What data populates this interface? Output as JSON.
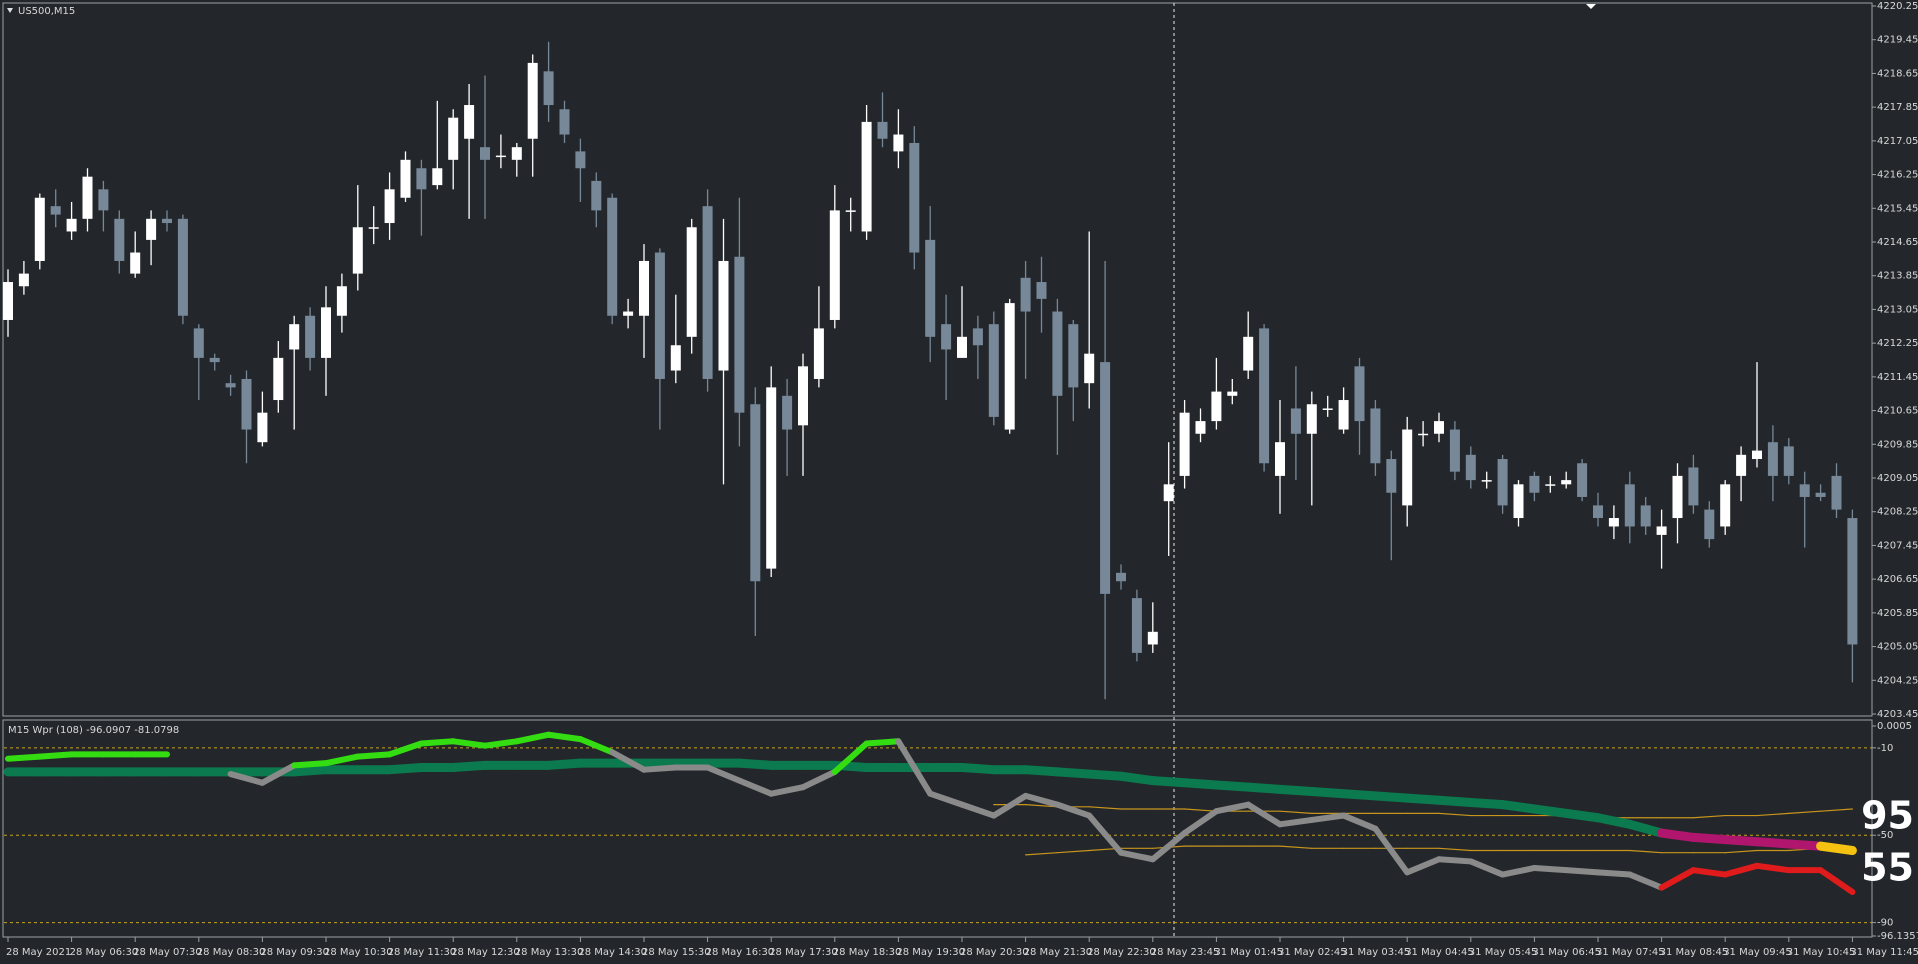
{
  "chart_data": [
    {
      "type": "candlestick",
      "title": "US500,M15",
      "up_color": "#ffffff",
      "down_color": "#778899",
      "ylim": [
        4203.45,
        4220.25
      ],
      "yticks": [
        4220.25,
        4219.45,
        4218.65,
        4217.85,
        4217.05,
        4216.25,
        4215.45,
        4214.65,
        4213.85,
        4213.05,
        4212.25,
        4211.45,
        4210.65,
        4209.85,
        4209.05,
        4208.25,
        4207.45,
        4206.65,
        4205.85,
        4205.05,
        4204.25,
        4203.45
      ],
      "open": [
        4212.8,
        4213.6,
        4214.2,
        4215.5,
        4214.9,
        4215.2,
        4215.9,
        4215.2,
        4213.9,
        4214.7,
        4215.2,
        4215.2,
        4212.6,
        4211.9,
        4211.3,
        4211.4,
        4209.9,
        4210.9,
        4212.1,
        4212.9,
        4211.9,
        4212.9,
        4213.9,
        4215.0,
        4215.1,
        4215.7,
        4216.4,
        4216.0,
        4216.6,
        4217.1,
        4216.9,
        4216.7,
        4216.6,
        4217.1,
        4218.7,
        4217.8,
        4216.8,
        4216.1,
        4215.7,
        4212.9,
        4212.9,
        4214.4,
        4211.6,
        4212.4,
        4215.5,
        4211.6,
        4214.3,
        4210.8,
        4206.9,
        4211.0,
        4210.3,
        4211.4,
        4212.8,
        4215.4,
        4214.9,
        4217.5,
        4216.8,
        4217.0,
        4214.7,
        4212.7,
        4211.9,
        4212.6,
        4212.7,
        4210.2,
        4213.8,
        4213.7,
        4213.0,
        4212.7,
        4211.3,
        4211.8,
        4206.8,
        4206.2,
        4205.1,
        4208.5,
        4209.1,
        4210.1,
        4210.4,
        4211.0,
        4211.6,
        4212.6,
        4209.1,
        4210.7,
        4210.1,
        4210.7,
        4210.2,
        4211.7,
        4210.7,
        4209.5,
        4208.4,
        4210.1,
        4210.1,
        4210.2,
        4209.6,
        4209.0,
        4209.5,
        4208.1,
        4209.1,
        4208.9,
        4208.9,
        4209.4,
        4208.4,
        4207.9,
        4208.9,
        4208.4,
        4207.7,
        4208.1,
        4209.3,
        4208.3,
        4207.9,
        4209.1,
        4209.5,
        4209.9,
        4209.8,
        4208.9,
        4208.7,
        4209.1,
        4208.1
      ],
      "high": [
        4214.0,
        4214.2,
        4215.8,
        4215.9,
        4215.6,
        4216.4,
        4216.1,
        4215.4,
        4214.9,
        4215.4,
        4215.4,
        4215.3,
        4212.7,
        4212.0,
        4211.5,
        4211.6,
        4211.1,
        4212.3,
        4212.9,
        4213.1,
        4213.6,
        4213.9,
        4216.0,
        4215.5,
        4216.3,
        4216.8,
        4216.6,
        4218.0,
        4217.8,
        4218.4,
        4218.6,
        4217.2,
        4217.0,
        4219.1,
        4219.4,
        4218.0,
        4217.1,
        4216.3,
        4215.8,
        4213.3,
        4214.6,
        4214.5,
        4213.4,
        4215.2,
        4215.9,
        4215.2,
        4215.7,
        4211.2,
        4211.7,
        4211.4,
        4212.0,
        4213.6,
        4216.0,
        4215.7,
        4217.9,
        4218.2,
        4217.8,
        4217.4,
        4215.5,
        4213.4,
        4213.6,
        4212.9,
        4213.0,
        4213.3,
        4214.2,
        4214.3,
        4213.3,
        4212.8,
        4214.9,
        4214.2,
        4207.0,
        4206.4,
        4206.1,
        4209.9,
        4210.9,
        4210.7,
        4211.9,
        4211.4,
        4213.0,
        4212.7,
        4210.9,
        4211.7,
        4211.1,
        4211.0,
        4211.2,
        4211.9,
        4210.9,
        4209.7,
        4210.5,
        4210.4,
        4210.6,
        4210.4,
        4209.8,
        4209.2,
        4209.6,
        4209.0,
        4209.2,
        4209.1,
        4209.2,
        4209.5,
        4208.7,
        4208.4,
        4209.2,
        4208.6,
        4208.3,
        4209.4,
        4209.6,
        4208.5,
        4209.0,
        4209.8,
        4211.8,
        4210.3,
        4210.0,
        4209.2,
        4208.9,
        4209.4,
        4208.3
      ],
      "low": [
        4212.4,
        4213.4,
        4214.0,
        4215.0,
        4214.7,
        4214.9,
        4214.9,
        4213.9,
        4213.8,
        4214.1,
        4214.9,
        4212.7,
        4210.9,
        4211.6,
        4211.0,
        4209.4,
        4209.8,
        4210.6,
        4210.2,
        4211.6,
        4211.0,
        4212.5,
        4213.5,
        4214.6,
        4214.7,
        4215.6,
        4214.8,
        4215.9,
        4215.9,
        4215.2,
        4215.2,
        4216.4,
        4216.2,
        4216.2,
        4217.5,
        4217.0,
        4215.6,
        4215.0,
        4212.7,
        4212.6,
        4211.9,
        4210.2,
        4211.3,
        4212.0,
        4211.1,
        4208.9,
        4209.8,
        4205.3,
        4206.7,
        4209.1,
        4209.1,
        4211.2,
        4212.6,
        4214.9,
        4214.7,
        4216.9,
        4216.4,
        4214.0,
        4211.8,
        4210.9,
        4211.9,
        4211.4,
        4210.3,
        4210.1,
        4211.4,
        4212.5,
        4209.6,
        4210.4,
        4210.7,
        4203.8,
        4206.4,
        4204.7,
        4204.9,
        4207.2,
        4208.8,
        4209.9,
        4210.2,
        4210.8,
        4211.4,
        4209.2,
        4208.2,
        4209.0,
        4208.4,
        4210.5,
        4210.1,
        4209.6,
        4209.1,
        4207.1,
        4207.9,
        4209.8,
        4209.9,
        4209.0,
        4208.8,
        4208.8,
        4208.2,
        4207.9,
        4208.5,
        4208.7,
        4208.8,
        4208.5,
        4207.9,
        4207.6,
        4207.5,
        4207.7,
        4206.9,
        4207.5,
        4208.2,
        4207.4,
        4207.7,
        4208.5,
        4209.3,
        4208.5,
        4208.9,
        4207.4,
        4208.5,
        4208.1,
        4204.2
      ],
      "close": [
        4213.7,
        4213.9,
        4215.7,
        4215.3,
        4215.2,
        4216.2,
        4215.4,
        4214.2,
        4214.4,
        4215.2,
        4215.1,
        4212.9,
        4211.9,
        4211.8,
        4211.2,
        4210.2,
        4210.6,
        4211.9,
        4212.7,
        4211.9,
        4213.1,
        4213.6,
        4215.0,
        4215.0,
        4215.9,
        4216.6,
        4215.9,
        4216.4,
        4217.6,
        4217.9,
        4216.6,
        4216.7,
        4216.9,
        4218.9,
        4217.9,
        4217.2,
        4216.4,
        4215.4,
        4212.9,
        4213.0,
        4214.2,
        4211.4,
        4212.2,
        4215.0,
        4211.4,
        4214.2,
        4210.6,
        4206.6,
        4211.2,
        4210.2,
        4211.7,
        4212.6,
        4215.4,
        4215.4,
        4217.5,
        4217.1,
        4217.2,
        4214.4,
        4212.4,
        4212.1,
        4212.4,
        4212.2,
        4210.5,
        4213.2,
        4213.0,
        4213.3,
        4211.0,
        4211.2,
        4212.0,
        4206.3,
        4206.6,
        4204.9,
        4205.4,
        4208.9,
        4210.6,
        4210.4,
        4211.1,
        4211.1,
        4212.4,
        4209.4,
        4209.9,
        4210.1,
        4210.8,
        4210.7,
        4210.9,
        4210.4,
        4209.4,
        4208.7,
        4210.2,
        4210.1,
        4210.4,
        4209.2,
        4209.0,
        4209.0,
        4208.4,
        4208.9,
        4208.7,
        4208.9,
        4209.0,
        4208.6,
        4208.1,
        4208.1,
        4207.9,
        4207.9,
        4207.9,
        4209.1,
        4208.4,
        4207.6,
        4208.9,
        4209.6,
        4209.7,
        4209.1,
        4209.1,
        4208.6,
        4208.6,
        4208.3,
        4205.1
      ]
    },
    {
      "type": "line",
      "title": "M15 Wpr (108) -96.0907 -81.0798",
      "ylim": [
        -96.1357,
        0.0005
      ],
      "yticks": [
        0.0005,
        -10,
        -50,
        -90,
        -96.1357
      ],
      "level_color": "#c8a21a",
      "categories": [
        "28 May 2021",
        null,
        "28 May 06:30",
        null,
        "28 May 07:30",
        null,
        "28 May 08:30",
        null,
        "28 May 09:30",
        null,
        "28 May 10:30",
        null,
        "28 May 11:30",
        null,
        "28 May 12:30",
        null,
        "28 May 13:30",
        null,
        "28 May 14:30",
        null,
        "28 May 15:30",
        null,
        "28 May 16:30",
        null,
        "28 May 17:30",
        null,
        "28 May 18:30",
        null,
        "28 May 19:30",
        null,
        "28 May 20:30",
        null,
        "28 May 21:30",
        null,
        "28 May 22:30",
        null,
        "28 May 23:45",
        null,
        "31 May 01:45",
        null,
        "31 May 02:45",
        null,
        "31 May 03:45",
        null,
        "31 May 04:45",
        null,
        "31 May 05:45",
        null,
        "31 May 06:45",
        null,
        "31 May 07:45",
        null,
        "31 May 08:45",
        null,
        "31 May 09:45",
        null,
        "31 May 10:45",
        null,
        "31 May 11:45"
      ],
      "series": [
        {
          "values": [
            -15,
            -14,
            -13,
            -13,
            -13,
            -13,
            null,
            -22,
            -26,
            -18,
            -17,
            -14,
            -13,
            -8,
            -7,
            -9,
            -7,
            -4,
            -6,
            -12,
            -20,
            -19,
            -19,
            -25,
            -31,
            -28,
            -21,
            -8,
            -7,
            -31,
            -36,
            -41,
            -32,
            -36,
            -41,
            -58,
            -61,
            -49,
            -39,
            -36,
            -45,
            -43,
            -41,
            -47,
            -67,
            -61,
            -62,
            -68,
            -65,
            -66,
            -67,
            -68,
            -74,
            -66,
            -68,
            -64,
            -66,
            -66,
            -76
          ],
          "colors": [
            "#33dd11",
            "#33dd11",
            "#33dd11",
            "#33dd11",
            "#33dd11",
            "#33dd11",
            "#8a8a8a",
            "#8a8a8a",
            "#8a8a8a",
            "#33dd11",
            "#33dd11",
            "#33dd11",
            "#33dd11",
            "#33dd11",
            "#33dd11",
            "#33dd11",
            "#33dd11",
            "#33dd11",
            "#33dd11",
            "#8a8a8a",
            "#8a8a8a",
            "#8a8a8a",
            "#8a8a8a",
            "#8a8a8a",
            "#8a8a8a",
            "#8a8a8a",
            "#33dd11",
            "#33dd11",
            "#8a8a8a",
            "#8a8a8a",
            "#8a8a8a",
            "#8a8a8a",
            "#8a8a8a",
            "#8a8a8a",
            "#8a8a8a",
            "#8a8a8a",
            "#8a8a8a",
            "#8a8a8a",
            "#8a8a8a",
            "#8a8a8a",
            "#8a8a8a",
            "#8a8a8a",
            "#8a8a8a",
            "#8a8a8a",
            "#8a8a8a",
            "#8a8a8a",
            "#8a8a8a",
            "#8a8a8a",
            "#8a8a8a",
            "#8a8a8a",
            "#8a8a8a",
            "#8a8a8a",
            "#e01b1b",
            "#e01b1b",
            "#e01b1b",
            "#e01b1b",
            "#e01b1b",
            "#e01b1b",
            "#e01b1b"
          ]
        },
        {
          "values": [
            -21,
            -21,
            -21,
            -21,
            -21,
            -21,
            -21,
            -21,
            -21,
            -21,
            -20,
            -20,
            -20,
            -19,
            -19,
            -18,
            -18,
            -18,
            -17,
            -17,
            -17,
            -17,
            -17,
            -17,
            -18,
            -18,
            -18,
            -19,
            -19,
            -19,
            -19,
            -20,
            -20,
            -21,
            -22,
            -23,
            -25,
            -26,
            -27,
            -28,
            -29,
            -30,
            -31,
            -32,
            -33,
            -34,
            -35,
            -36,
            -38,
            -40,
            -42,
            -45,
            -49,
            -51,
            -52,
            -53,
            -54,
            -55,
            -57
          ],
          "colors": [
            "#0b7a4e",
            "#0b7a4e",
            "#0b7a4e",
            "#0b7a4e",
            "#0b7a4e",
            "#0b7a4e",
            "#0b7a4e",
            "#0b7a4e",
            "#0b7a4e",
            "#0b7a4e",
            "#0b7a4e",
            "#0b7a4e",
            "#0b7a4e",
            "#0b7a4e",
            "#0b7a4e",
            "#0b7a4e",
            "#0b7a4e",
            "#0b7a4e",
            "#0b7a4e",
            "#0b7a4e",
            "#0b7a4e",
            "#0b7a4e",
            "#0b7a4e",
            "#0b7a4e",
            "#0b7a4e",
            "#0b7a4e",
            "#0b7a4e",
            "#0b7a4e",
            "#0b7a4e",
            "#0b7a4e",
            "#0b7a4e",
            "#0b7a4e",
            "#0b7a4e",
            "#0b7a4e",
            "#0b7a4e",
            "#0b7a4e",
            "#0b7a4e",
            "#0b7a4e",
            "#0b7a4e",
            "#0b7a4e",
            "#0b7a4e",
            "#0b7a4e",
            "#0b7a4e",
            "#0b7a4e",
            "#0b7a4e",
            "#0b7a4e",
            "#0b7a4e",
            "#0b7a4e",
            "#0b7a4e",
            "#0b7a4e",
            "#0b7a4e",
            "#0b7a4e",
            "#b0166e",
            "#b0166e",
            "#b0166e",
            "#b0166e",
            "#b0166e",
            "#f5c211",
            "#f5c211"
          ]
        },
        {
          "color": "#c8951c",
          "values": [
            null,
            null,
            null,
            null,
            null,
            null,
            null,
            null,
            null,
            null,
            null,
            null,
            null,
            null,
            null,
            null,
            null,
            null,
            null,
            null,
            null,
            null,
            null,
            null,
            null,
            null,
            null,
            null,
            null,
            null,
            null,
            -36,
            -36,
            -37,
            -37,
            -38,
            -38,
            -38,
            -39,
            -39,
            -39,
            -40,
            -40,
            -40,
            -40,
            -40,
            -41,
            -41,
            -41,
            -41,
            -42,
            -42,
            -42,
            -42,
            -41,
            -41,
            -40,
            -39,
            -38
          ]
        },
        {
          "color": "#c8951c",
          "values": [
            null,
            null,
            null,
            null,
            null,
            null,
            null,
            null,
            null,
            null,
            null,
            null,
            null,
            null,
            null,
            null,
            null,
            null,
            null,
            null,
            null,
            null,
            null,
            null,
            null,
            null,
            null,
            null,
            null,
            null,
            null,
            null,
            -59,
            -58,
            -57,
            -56,
            -56,
            -55,
            -55,
            -55,
            -55,
            -56,
            -56,
            -56,
            -56,
            -56,
            -57,
            -57,
            -57,
            -57,
            -57,
            -57,
            -58,
            -58,
            -58,
            -57,
            -57,
            -56,
            -56
          ]
        }
      ],
      "annotations": [
        {
          "text": "95"
        },
        {
          "text": "55"
        }
      ]
    }
  ]
}
